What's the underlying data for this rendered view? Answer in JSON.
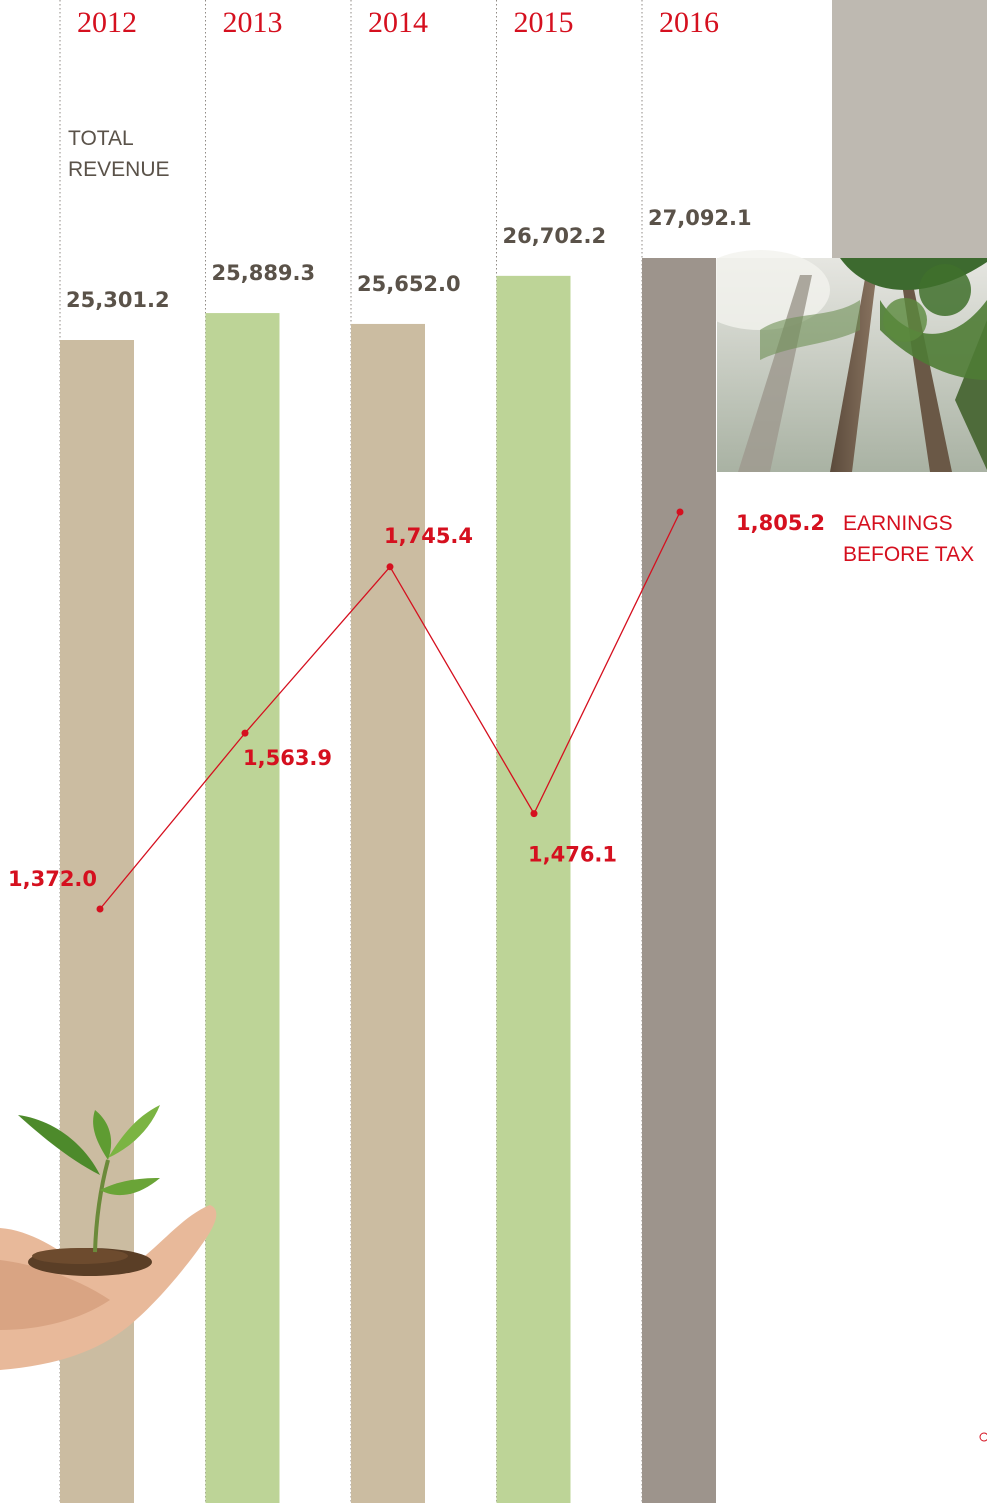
{
  "chart_data": {
    "type": "bar",
    "categories": [
      "2012",
      "2013",
      "2014",
      "2015",
      "2016"
    ],
    "series": [
      {
        "name": "TOTAL REVENUE",
        "type": "bar",
        "values": [
          25301.2,
          25889.3,
          25652.0,
          26702.2,
          27092.1
        ],
        "labels": [
          "25,301.2",
          "25,889.3",
          "25,652.0",
          "26,702.2",
          "27,092.1"
        ],
        "colors": [
          "#cbbca1",
          "#bdd497",
          "#cbbca1",
          "#bdd497",
          "#9d948c"
        ]
      },
      {
        "name": "EARNINGS BEFORE TAX",
        "type": "line",
        "values": [
          1372.0,
          1563.9,
          1745.4,
          1476.1,
          1805.2
        ],
        "labels": [
          "1,372.0",
          "1,563.9",
          "1,745.4",
          "1,476.1",
          "1,805.2"
        ],
        "color": "#d5101f"
      }
    ],
    "series_titles": {
      "revenue": [
        "TOTAL",
        "REVENUE"
      ],
      "ebt": [
        "EARNINGS",
        "BEFORE TAX"
      ]
    },
    "grid": "vertical dotted lines between years",
    "legend": "none",
    "title": "",
    "xlabel": "",
    "ylabel": ""
  },
  "colors": {
    "accent": "#d5101f",
    "revenue_text": "#5a5249",
    "year_text": "#d5101f"
  },
  "images": {
    "top_right": "forest-photo",
    "bottom_left": "seedling-in-hand-photo"
  }
}
